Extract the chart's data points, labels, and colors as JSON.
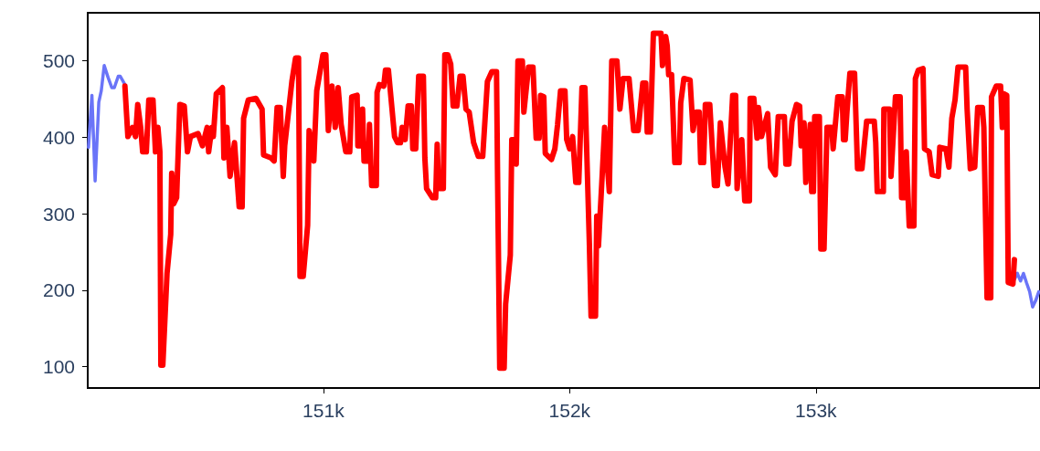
{
  "chart_data": {
    "type": "line",
    "xlim": [
      150043,
      153910
    ],
    "xticks": [
      {
        "value": 151000,
        "label": "151k"
      },
      {
        "value": 152000,
        "label": "152k"
      },
      {
        "value": 153000,
        "label": "153k"
      }
    ],
    "ylim": [
      72,
      563
    ],
    "yticks": [
      100,
      200,
      300,
      400,
      500
    ],
    "grid": false,
    "marker": "none",
    "line_style": "solid",
    "series": [
      {
        "color": "#6a74f8",
        "x": [
          150046,
          150060,
          150073,
          150088,
          150098,
          150110,
          150126,
          150141,
          150151,
          150167,
          150175,
          150194,
          150200,
          153806,
          153818,
          153831,
          153843,
          153855,
          153868,
          153880,
          153892,
          153905
        ],
        "values": [
          387,
          455,
          343,
          446,
          461,
          494,
          478,
          465,
          465,
          480,
          480,
          469,
          null,
          214,
          222,
          212,
          222,
          210,
          198,
          178,
          186,
          198
        ]
      },
      {
        "color": "#ff0000",
        "x": [
          150194,
          150206,
          150225,
          150237,
          150246,
          150258,
          150266,
          150281,
          150291,
          150308,
          150318,
          150328,
          150336,
          150340,
          150348,
          150365,
          150380,
          150384,
          150392,
          150404,
          150417,
          150435,
          150448,
          150460,
          150491,
          150509,
          150528,
          150534,
          150547,
          150553,
          150565,
          150590,
          150596,
          150608,
          150621,
          150639,
          150658,
          150670,
          150676,
          150695,
          150726,
          150751,
          150757,
          150788,
          150800,
          150812,
          150825,
          150837,
          150843,
          150872,
          150887,
          150899,
          150905,
          150918,
          150936,
          150942,
          150961,
          150973,
          150998,
          151010,
          151020,
          151035,
          151048,
          151060,
          151072,
          151091,
          151107,
          151115,
          151137,
          151140,
          151153,
          151159,
          151165,
          151183,
          151187,
          151196,
          151215,
          151218,
          151227,
          151245,
          151252,
          151264,
          151289,
          151301,
          151313,
          151320,
          151332,
          151344,
          151357,
          151363,
          151375,
          151387,
          151406,
          151412,
          151419,
          151431,
          151443,
          151456,
          151462,
          151468,
          151487,
          151493,
          151505,
          151517,
          151527,
          151542,
          151555,
          151567,
          151579,
          151592,
          151610,
          151629,
          151647,
          151666,
          151684,
          151703,
          151707,
          151716,
          151734,
          151740,
          151759,
          151765,
          151775,
          151783,
          151790,
          151808,
          151814,
          151833,
          151851,
          151864,
          151876,
          151882,
          151895,
          151901,
          151926,
          151940,
          151951,
          151963,
          151981,
          151988,
          152000,
          152012,
          152025,
          152037,
          152050,
          152062,
          152080,
          152087,
          152105,
          152110,
          152117,
          152130,
          152142,
          152161,
          152171,
          152192,
          152204,
          152217,
          152241,
          152260,
          152278,
          152297,
          152309,
          152315,
          152328,
          152340,
          152371,
          152377,
          152390,
          152396,
          152402,
          152414,
          152427,
          152445,
          152451,
          152464,
          152489,
          152501,
          152513,
          152526,
          152532,
          152544,
          152551,
          152569,
          152588,
          152600,
          152612,
          152631,
          152643,
          152662,
          152674,
          152680,
          152699,
          152711,
          152730,
          152733,
          152748,
          152761,
          152767,
          152779,
          152804,
          152816,
          152835,
          152847,
          152872,
          152878,
          152890,
          152903,
          152921,
          152934,
          152940,
          152952,
          152959,
          152977,
          152983,
          152990,
          152995,
          153014,
          153020,
          153033,
          153045,
          153064,
          153070,
          153089,
          153107,
          153112,
          153119,
          153126,
          153138,
          153157,
          153169,
          153187,
          153206,
          153237,
          153243,
          153249,
          153274,
          153276,
          153299,
          153305,
          153323,
          153342,
          153348,
          153361,
          153367,
          153379,
          153398,
          153404,
          153416,
          153435,
          153441,
          153460,
          153472,
          153497,
          153503,
          153528,
          153540,
          153552,
          153565,
          153577,
          153608,
          153614,
          153627,
          153645,
          153657,
          153676,
          153682,
          153695,
          153710,
          153713,
          153732,
          153750,
          153757,
          153763,
          153775,
          153781,
          153800,
          153806
        ],
        "values": [
          467,
          401,
          413,
          401,
          443,
          413,
          381,
          381,
          449,
          449,
          381,
          413,
          381,
          102,
          102,
          222,
          273,
          353,
          313,
          321,
          443,
          441,
          381,
          401,
          405,
          389,
          413,
          381,
          413,
          401,
          457,
          465,
          373,
          413,
          349,
          393,
          309,
          309,
          425,
          449,
          451,
          437,
          377,
          373,
          369,
          439,
          439,
          349,
          389,
          473,
          504,
          504,
          218,
          218,
          285,
          409,
          369,
          461,
          508,
          508,
          409,
          467,
          413,
          465,
          417,
          381,
          381,
          453,
          455,
          389,
          389,
          437,
          369,
          369,
          417,
          337,
          337,
          459,
          469,
          467,
          488,
          488,
          401,
          393,
          393,
          413,
          397,
          441,
          441,
          385,
          385,
          480,
          480,
          373,
          333,
          327,
          321,
          321,
          391,
          333,
          333,
          508,
          508,
          496,
          441,
          441,
          480,
          480,
          437,
          433,
          393,
          375,
          375,
          473,
          486,
          486,
          357,
          98,
          98,
          182,
          246,
          397,
          397,
          365,
          500,
          500,
          433,
          492,
          492,
          399,
          399,
          455,
          453,
          379,
          371,
          385,
          417,
          461,
          461,
          397,
          385,
          401,
          341,
          341,
          465,
          465,
          262,
          166,
          166,
          297,
          258,
          337,
          413,
          329,
          500,
          500,
          437,
          477,
          477,
          409,
          409,
          471,
          471,
          407,
          407,
          536,
          536,
          494,
          532,
          520,
          482,
          482,
          367,
          367,
          445,
          477,
          475,
          409,
          433,
          433,
          367,
          367,
          443,
          443,
          337,
          337,
          419,
          361,
          339,
          455,
          455,
          333,
          397,
          317,
          317,
          451,
          451,
          399,
          439,
          401,
          431,
          361,
          351,
          427,
          427,
          365,
          365,
          421,
          443,
          441,
          389,
          419,
          341,
          417,
          329,
          329,
          427,
          427,
          254,
          254,
          413,
          413,
          385,
          453,
          453,
          397,
          397,
          433,
          484,
          484,
          359,
          359,
          421,
          421,
          393,
          329,
          329,
          437,
          437,
          349,
          453,
          453,
          321,
          321,
          381,
          284,
          284,
          477,
          488,
          490,
          385,
          381,
          351,
          349,
          387,
          385,
          361,
          425,
          449,
          492,
          492,
          437,
          359,
          361,
          439,
          439,
          413,
          190,
          190,
          453,
          467,
          467,
          413,
          457,
          455,
          210,
          208,
          240
        ]
      }
    ]
  }
}
